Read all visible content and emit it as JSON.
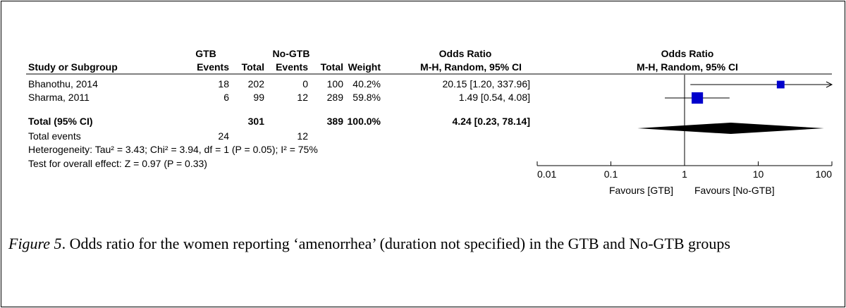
{
  "table": {
    "group_headers": [
      "GTB",
      "No-GTB",
      "Odds Ratio"
    ],
    "columns": [
      "Study or Subgroup",
      "Events",
      "Total",
      "Events",
      "Total",
      "Weight",
      "M-H, Random, 95% CI"
    ],
    "rows": [
      [
        "Bhanothu, 2014",
        "18",
        "202",
        "0",
        "100",
        "40.2%",
        "20.15 [1.20, 337.96]"
      ],
      [
        "Sharma, 2011",
        "6",
        "99",
        "12",
        "289",
        "59.8%",
        "1.49 [0.54, 4.08]"
      ]
    ],
    "total": {
      "label": "Total (95% CI)",
      "gtb_total": "301",
      "nogtb_total": "389",
      "weight": "100.0%",
      "ci": "4.24 [0.23, 78.14]"
    },
    "total_events": {
      "label": "Total events",
      "gtb": "24",
      "nogtb": "12"
    },
    "heterogeneity": "Heterogeneity: Tau² = 3.43; Chi² = 3.94, df = 1 (P = 0.05); I² = 75%",
    "overall_effect": "Test for overall effect: Z = 0.97 (P = 0.33)"
  },
  "plot": {
    "title": "Odds Ratio",
    "subtitle": "M-H, Random, 95% CI",
    "log": true,
    "xlim": [
      0.01,
      100
    ],
    "xticks": [
      0.01,
      0.1,
      1,
      10,
      100
    ],
    "color": "#0000cc",
    "studies": [
      {
        "or": 20.15,
        "lo": 1.2,
        "hi": 337.96,
        "weight": 40.2
      },
      {
        "or": 1.49,
        "lo": 0.54,
        "hi": 4.08,
        "weight": 59.8
      }
    ],
    "total": {
      "or": 4.24,
      "lo": 0.23,
      "hi": 78.14
    },
    "favours_left": "Favours [GTB]",
    "favours_right": "Favours [No-GTB]"
  },
  "caption": {
    "label": "Figure 5",
    "text": ". Odds ratio for the women reporting ‘amenorrhea’ (duration not specified) in the GTB and No-GTB groups"
  }
}
